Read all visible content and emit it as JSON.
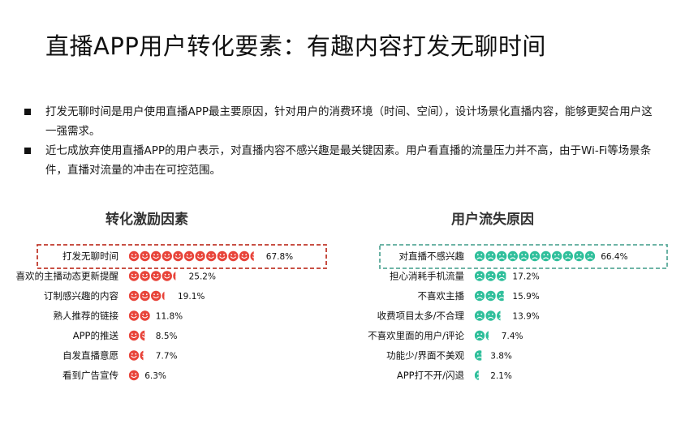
{
  "title": "直播APP用户转化要素：有趣内容打发无聊时间",
  "bullets": [
    "打发无聊时间是用户使用直播APP最主要原因，针对用户的消费环境（时间、空间），设计场景化直播内容，能够更契合用户这一强需求。",
    "近七成放弃使用直播APP的用户表示，对直播内容不感兴趣是最关键因素。用户看直播的流量压力并不高，由于Wi-Fi等场景条件，直播对流量的冲击在可控范围。"
  ],
  "colors": {
    "happy": "#e8443a",
    "sad": "#2fbf9b",
    "left_highlight_border": "#c0392b",
    "right_highlight_border": "#5aa99a"
  },
  "icons": {
    "happy": "smiley-face-icon",
    "sad": "sad-face-icon"
  },
  "chart_data": [
    {
      "type": "bar",
      "title": "转化激励因素",
      "icon": "smiley-face-icon",
      "categories": [
        "打发无聊时间",
        "喜欢的主播动态更新提醒",
        "订制感兴趣的内容",
        "熟人推荐的链接",
        "APP的推送",
        "自发直播意愿",
        "看到广告宣传"
      ],
      "values": [
        67.8,
        25.2,
        19.1,
        11.8,
        8.5,
        7.7,
        6.3
      ],
      "value_labels": [
        "67.8%",
        "25.2%",
        "19.1%",
        "11.8%",
        "8.5%",
        "7.7%",
        "6.3%"
      ],
      "highlight": "打发无聊时间",
      "unit": "%"
    },
    {
      "type": "bar",
      "title": "用户流失原因",
      "icon": "sad-face-icon",
      "categories": [
        "对直播不感兴趣",
        "担心消耗手机流量",
        "不喜欢主播",
        "收费项目太多/不合理",
        "不喜欢里面的用户/评论",
        "功能少/界面不美观",
        "APP打不开/闪退"
      ],
      "values": [
        66.4,
        17.2,
        15.9,
        13.9,
        7.4,
        3.8,
        2.1
      ],
      "value_labels": [
        "66.4%",
        "17.2%",
        "15.9%",
        "13.9%",
        "7.4%",
        "3.8%",
        "2.1%"
      ],
      "highlight": "对直播不感兴趣",
      "unit": "%"
    }
  ]
}
